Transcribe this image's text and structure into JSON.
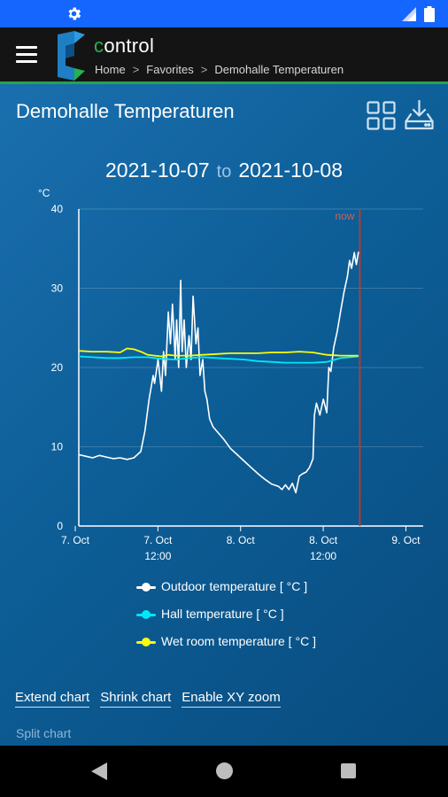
{
  "app": {
    "name_c": "c",
    "name_rest": "ontrol"
  },
  "breadcrumb": [
    "Home",
    "Favorites",
    "Demohalle Temperaturen"
  ],
  "page": {
    "title": "Demohalle Temperaturen"
  },
  "icons": {
    "settings": "gear-icon",
    "signal": "signal-icon",
    "battery": "battery-icon",
    "menu": "hamburger-menu-icon",
    "grid": "grid-view-icon",
    "download": "download-icon",
    "back": "back-icon",
    "home": "home-icon",
    "recent": "recent-apps-icon"
  },
  "date_range": {
    "from": "2021-10-07",
    "to_label": "to",
    "to": "2021-10-08"
  },
  "chart_data": {
    "type": "line",
    "y_unit": "°C",
    "ylim": [
      0,
      40
    ],
    "y_ticks": [
      0,
      10,
      20,
      30,
      40
    ],
    "x_ticks": [
      {
        "t": 0,
        "label": "7. Oct",
        "sub": ""
      },
      {
        "t": 12,
        "label": "7. Oct",
        "sub": "12:00"
      },
      {
        "t": 24,
        "label": "8. Oct",
        "sub": ""
      },
      {
        "t": 36,
        "label": "8. Oct",
        "sub": "12:00"
      },
      {
        "t": 48,
        "label": "9. Oct",
        "sub": ""
      }
    ],
    "x_unit": "hours since 2021-10-07 00:00",
    "xlim": [
      0,
      50
    ],
    "now": {
      "t": 40.8,
      "label": "now"
    },
    "grid": true,
    "series": [
      {
        "name": "Outdoor temperature [ °C ]",
        "color": "#ffffff",
        "x": [
          0,
          1,
          2,
          3,
          4,
          5,
          6,
          7,
          8,
          9,
          9.6,
          10.2,
          10.8,
          11,
          11.5,
          12,
          12.3,
          12.6,
          13,
          13.3,
          13.6,
          14,
          14.2,
          14.5,
          14.8,
          15,
          15.3,
          15.6,
          16,
          16.3,
          16.6,
          17,
          17.3,
          17.6,
          18,
          18.3,
          18.6,
          19,
          19.5,
          20,
          21,
          22,
          23,
          24,
          25,
          26,
          27,
          28,
          29,
          29.5,
          30,
          30.5,
          31,
          31.5,
          32,
          32.5,
          33,
          33.5,
          34,
          34.2,
          34.5,
          35,
          35.5,
          36,
          36.3,
          36.6,
          37,
          37.5,
          38,
          38.5,
          39,
          39.3,
          39.6,
          40,
          40.3,
          40.6
        ],
        "y": [
          9,
          8.8,
          8.6,
          8.9,
          8.7,
          8.5,
          8.6,
          8.4,
          8.6,
          9.4,
          12,
          16,
          19,
          18,
          21,
          17,
          22,
          19,
          27,
          23,
          28,
          21,
          26,
          20,
          31,
          22,
          26,
          20,
          24,
          21,
          29,
          23,
          25,
          19,
          21,
          17,
          16,
          13.5,
          12.5,
          12,
          11,
          9.8,
          9,
          8.2,
          7.4,
          6.6,
          5.9,
          5.3,
          5,
          4.6,
          5.2,
          4.6,
          5.4,
          4.2,
          6.3,
          6.6,
          6.8,
          7.4,
          8.5,
          14,
          15.5,
          14,
          16,
          14.3,
          20,
          19.5,
          22.5,
          24.5,
          27,
          29.5,
          31.5,
          33.5,
          32.5,
          34.5,
          33,
          34.6
        ]
      },
      {
        "name": "Hall temperature [ °C ]",
        "color": "#00e8f7",
        "x": [
          0,
          2,
          4,
          6,
          8,
          10,
          12,
          14,
          16,
          18,
          20,
          22,
          24,
          26,
          28,
          30,
          32,
          34,
          36,
          38,
          40.6
        ],
        "y": [
          21.4,
          21.3,
          21.2,
          21.2,
          21.3,
          21.3,
          21.1,
          21.0,
          21.2,
          21.3,
          21.2,
          21.1,
          21.0,
          20.8,
          20.7,
          20.6,
          20.6,
          20.6,
          20.7,
          21.2,
          21.4
        ]
      },
      {
        "name": "Wet room temperature [ °C ]",
        "color": "#fbfb0b",
        "x": [
          0,
          2,
          4,
          6,
          7,
          8,
          9,
          10,
          11,
          12,
          13,
          14,
          16,
          18,
          20,
          22,
          24,
          26,
          28,
          30,
          32,
          34,
          36,
          38,
          40.6
        ],
        "y": [
          22.1,
          22.0,
          22.0,
          21.9,
          22.4,
          22.3,
          22.0,
          21.6,
          21.5,
          21.4,
          21.6,
          21.5,
          21.5,
          21.6,
          21.7,
          21.8,
          21.8,
          21.8,
          21.9,
          21.9,
          22.0,
          21.9,
          21.6,
          21.5,
          21.5
        ]
      }
    ]
  },
  "actions": {
    "extend": "Extend chart",
    "shrink": "Shrink chart",
    "xyzoom": "Enable XY zoom",
    "split": "Split chart"
  }
}
